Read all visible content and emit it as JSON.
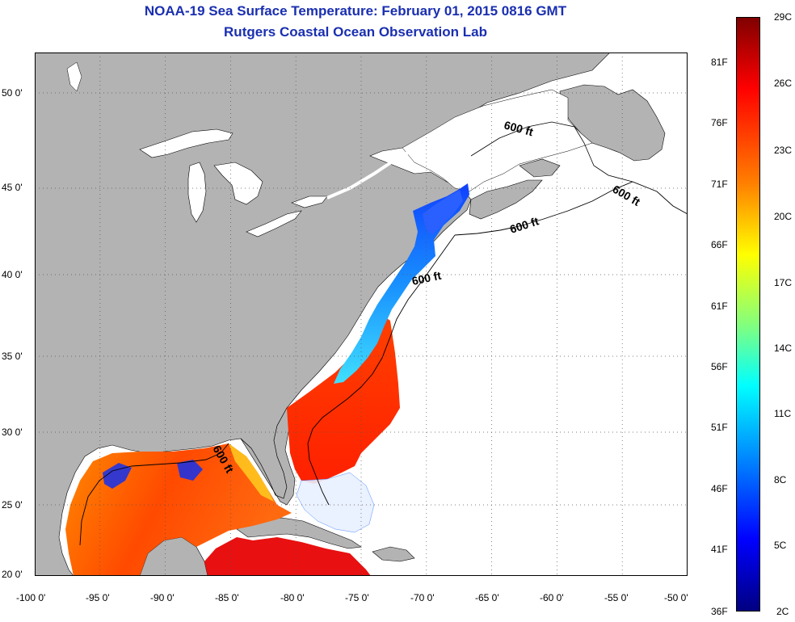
{
  "title": "NOAA-19 Sea Surface Temperature:  February 01, 2015 0816 GMT",
  "subtitle": "Rutgers Coastal Ocean Observation Lab",
  "map": {
    "lat_labels": [
      "50 0'",
      "45 0'",
      "40 0'",
      "35 0'",
      "30 0'",
      "25 0'",
      "20 0'"
    ],
    "lon_labels": [
      "-100 0'",
      "-95 0'",
      "-90 0'",
      "-85 0'",
      "-80 0'",
      "-75 0'",
      "-70 0'",
      "-65 0'",
      "-60 0'",
      "-55 0'",
      "-50 0'"
    ],
    "isobath_labels": [
      "600 ft",
      "600 ft",
      "600 ft",
      "600 ft",
      "600 ft"
    ],
    "colors": {
      "land": "#b3b3b3",
      "ocean_no_data": "#ffffff",
      "lake": "#ffffff"
    }
  },
  "colorbar": {
    "top_c": "29C",
    "bottom_c": "2C",
    "bottom_f": "36F",
    "celsius_labels": [
      "26C",
      "23C",
      "20C",
      "17C",
      "14C",
      "11C",
      "8C",
      "5C"
    ],
    "fahrenheit_labels": [
      "81F",
      "76F",
      "71F",
      "66F",
      "61F",
      "56F",
      "51F",
      "46F",
      "41F"
    ],
    "gradient_colors": [
      "#800000",
      "#ff0000",
      "#ff8000",
      "#ffff00",
      "#80ff80",
      "#00ffff",
      "#0080ff",
      "#0000ff",
      "#000080"
    ]
  }
}
